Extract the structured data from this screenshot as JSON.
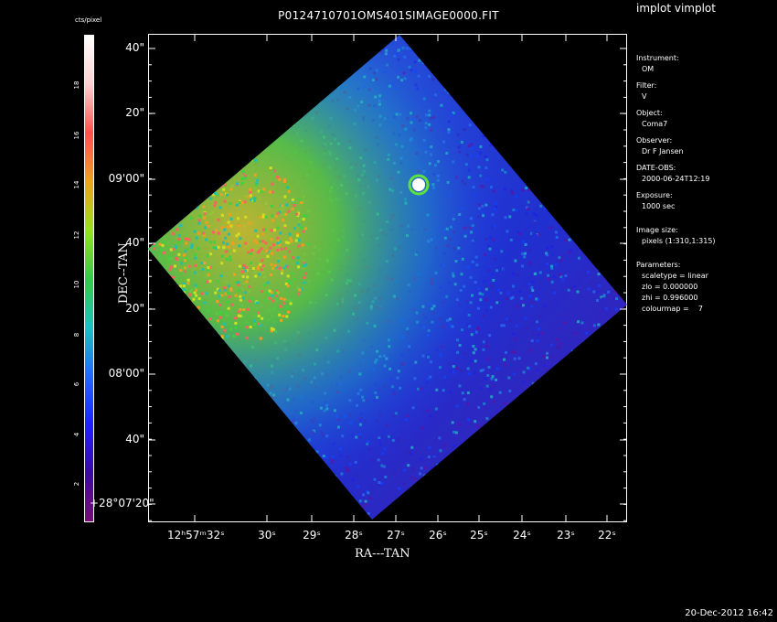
{
  "window": {
    "title": "P0124710701OMS401SIMAGE0000.FIT",
    "app_name": "implot vimplot",
    "timestamp": "20-Dec-2012 16:42"
  },
  "colorbar": {
    "label": "cts/pixel",
    "ticks": [
      "2",
      "4",
      "6",
      "8",
      "10",
      "12",
      "14",
      "16",
      "18"
    ],
    "colors": [
      "#7a0a7a",
      "#3a0aa0",
      "#2020ff",
      "#1e6cff",
      "#1fc0c0",
      "#33cc44",
      "#99e020",
      "#f0a020",
      "#ff5050",
      "#ffd0d0",
      "#ffffff"
    ]
  },
  "axes": {
    "xlabel": "RA---TAN",
    "ylabel": "DEC--TAN",
    "x_ticks": [
      "12ʰ57ᵐ32ˢ",
      "30ˢ",
      "29ˢ",
      "28ˢ",
      "27ˢ",
      "26ˢ",
      "25ˢ",
      "24ˢ",
      "23ˢ",
      "22ˢ"
    ],
    "y_ticks": [
      "40\"",
      "20\"",
      "09'00\"",
      "40\"",
      "20\"",
      "08'00\"",
      "40\"",
      "+28°07'20\""
    ]
  },
  "metadata": [
    {
      "key": "Instrument:",
      "value": "OM"
    },
    {
      "key": "Filter:",
      "value": "V"
    },
    {
      "key": "Object:",
      "value": "Coma7"
    },
    {
      "key": "Observer:",
      "value": "Dr F Jansen"
    },
    {
      "key": "DATE-OBS:",
      "value": "2000-06-24T12:19"
    },
    {
      "key": "Exposure:",
      "value": "1000 sec"
    },
    {
      "key": "Image size:",
      "value": "pixels (1:310,1:315)"
    }
  ],
  "parameters": {
    "label": "Parameters:",
    "items": [
      "scaletype = linear",
      "zlo = 0.000000",
      "zhi = 0.996000",
      "colourmap =    7"
    ]
  }
}
